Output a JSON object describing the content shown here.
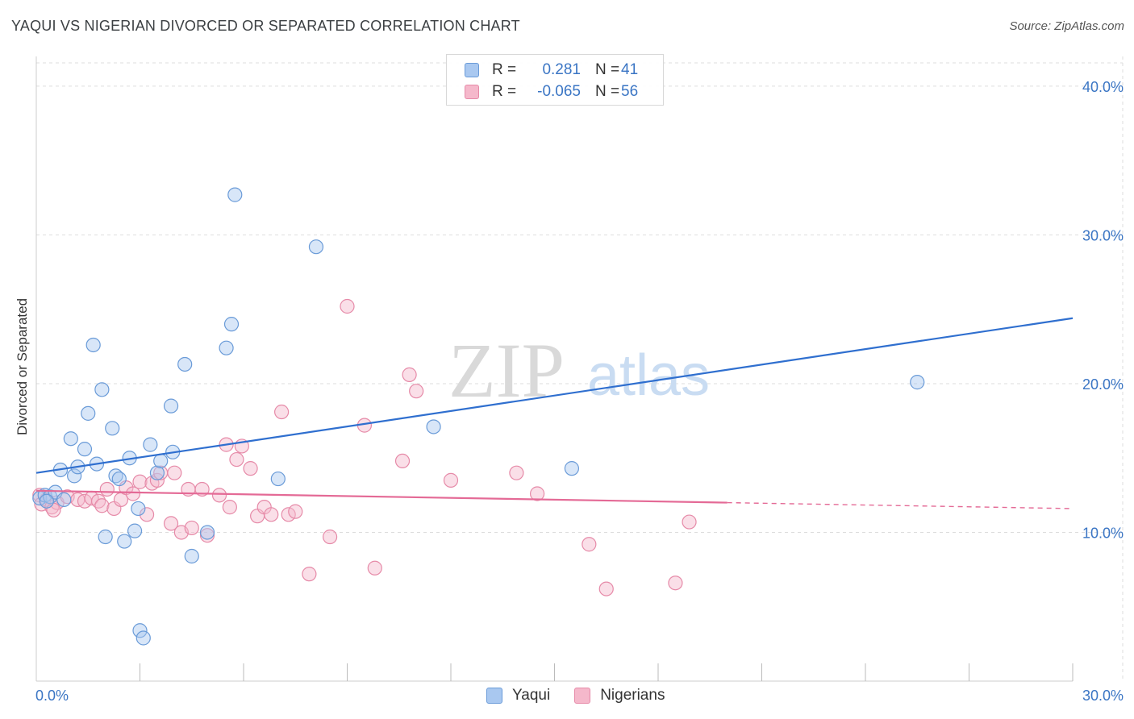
{
  "header": {
    "title": "YAQUI VS NIGERIAN DIVORCED OR SEPARATED CORRELATION CHART",
    "source": "Source: ZipAtlas.com"
  },
  "watermark": {
    "zip": "ZIP",
    "atlas": "atlas"
  },
  "legend_stats": [
    {
      "r_label": "R =",
      "r_value": "0.281",
      "n_label": "N =",
      "n_value": "41"
    },
    {
      "r_label": "R =",
      "r_value": "-0.065",
      "n_label": "N =",
      "n_value": "56"
    }
  ],
  "colors": {
    "yaqui_fill": "#a9c8f0",
    "yaqui_stroke": "#6a9bd8",
    "yaqui_line": "#2f6fcf",
    "nigerian_fill": "#f5b8cb",
    "nigerian_stroke": "#e68aa8",
    "nigerian_line": "#e46a96",
    "value_text": "#3a75c4",
    "grid": "#dddddd"
  },
  "chart_data": {
    "type": "scatter",
    "title": "YAQUI VS NIGERIAN DIVORCED OR SEPARATED CORRELATION CHART",
    "xlabel": "",
    "ylabel": "Divorced or Separated",
    "xlim": [
      0,
      30
    ],
    "ylim": [
      0,
      42
    ],
    "x_tick_labels": [
      "0.0%",
      "30.0%"
    ],
    "y_ticks": [
      10,
      20,
      30,
      40
    ],
    "y_tick_labels": [
      "10.0%",
      "20.0%",
      "30.0%",
      "40.0%"
    ],
    "legend": [
      "Yaqui",
      "Nigerians"
    ],
    "series": [
      {
        "name": "Yaqui",
        "r": 0.281,
        "n": 41,
        "trend": {
          "x": [
            0,
            30
          ],
          "y": [
            14.0,
            24.4
          ]
        },
        "points": [
          [
            0.1,
            12.3
          ],
          [
            0.25,
            12.5
          ],
          [
            0.4,
            12.4
          ],
          [
            0.55,
            12.7
          ],
          [
            0.8,
            12.2
          ],
          [
            0.7,
            14.2
          ],
          [
            1.1,
            13.8
          ],
          [
            1.2,
            14.4
          ],
          [
            1.0,
            16.3
          ],
          [
            1.4,
            15.6
          ],
          [
            1.5,
            18.0
          ],
          [
            1.65,
            22.6
          ],
          [
            1.75,
            14.6
          ],
          [
            1.9,
            19.6
          ],
          [
            2.0,
            9.7
          ],
          [
            2.2,
            17.0
          ],
          [
            2.3,
            13.8
          ],
          [
            2.4,
            13.6
          ],
          [
            2.55,
            9.4
          ],
          [
            2.7,
            15.0
          ],
          [
            2.85,
            10.1
          ],
          [
            2.95,
            11.6
          ],
          [
            3.0,
            3.4
          ],
          [
            3.1,
            2.9
          ],
          [
            3.3,
            15.9
          ],
          [
            3.5,
            14.0
          ],
          [
            3.6,
            14.8
          ],
          [
            3.9,
            18.5
          ],
          [
            3.95,
            15.4
          ],
          [
            4.3,
            21.3
          ],
          [
            4.5,
            8.4
          ],
          [
            4.95,
            10.0
          ],
          [
            5.5,
            22.4
          ],
          [
            5.65,
            24.0
          ],
          [
            5.75,
            32.7
          ],
          [
            7.0,
            13.6
          ],
          [
            8.1,
            29.2
          ],
          [
            11.5,
            17.1
          ],
          [
            15.5,
            14.3
          ],
          [
            25.5,
            20.1
          ],
          [
            0.3,
            12.1
          ]
        ]
      },
      {
        "name": "Nigerians",
        "r": -0.065,
        "n": 56,
        "trend": {
          "x": [
            0,
            20
          ],
          "y": [
            12.8,
            12.0
          ],
          "dashed_to": [
            30,
            11.6
          ]
        },
        "points": [
          [
            0.1,
            12.5
          ],
          [
            0.15,
            11.9
          ],
          [
            0.3,
            12.2
          ],
          [
            0.45,
            11.7
          ],
          [
            0.6,
            12.0
          ],
          [
            0.9,
            12.4
          ],
          [
            1.2,
            12.2
          ],
          [
            1.4,
            12.1
          ],
          [
            1.6,
            12.3
          ],
          [
            1.8,
            12.1
          ],
          [
            1.9,
            11.8
          ],
          [
            2.05,
            12.9
          ],
          [
            2.25,
            11.6
          ],
          [
            2.45,
            12.2
          ],
          [
            2.6,
            13.0
          ],
          [
            2.8,
            12.6
          ],
          [
            3.0,
            13.4
          ],
          [
            3.2,
            11.2
          ],
          [
            3.35,
            13.3
          ],
          [
            3.5,
            13.5
          ],
          [
            3.6,
            14.0
          ],
          [
            3.9,
            10.6
          ],
          [
            4.0,
            14.0
          ],
          [
            4.2,
            10.0
          ],
          [
            4.4,
            12.9
          ],
          [
            4.5,
            10.3
          ],
          [
            4.8,
            12.9
          ],
          [
            4.95,
            9.8
          ],
          [
            5.3,
            12.5
          ],
          [
            5.5,
            15.9
          ],
          [
            5.6,
            11.7
          ],
          [
            5.8,
            14.9
          ],
          [
            5.95,
            15.8
          ],
          [
            6.2,
            14.3
          ],
          [
            6.4,
            11.1
          ],
          [
            6.6,
            11.7
          ],
          [
            6.8,
            11.2
          ],
          [
            7.1,
            18.1
          ],
          [
            7.3,
            11.2
          ],
          [
            7.5,
            11.4
          ],
          [
            7.9,
            7.2
          ],
          [
            8.5,
            9.7
          ],
          [
            9.0,
            25.2
          ],
          [
            9.5,
            17.2
          ],
          [
            9.8,
            7.6
          ],
          [
            10.6,
            14.8
          ],
          [
            10.8,
            20.6
          ],
          [
            11.0,
            19.5
          ],
          [
            12.0,
            13.5
          ],
          [
            13.9,
            14.0
          ],
          [
            14.5,
            12.6
          ],
          [
            16.0,
            9.2
          ],
          [
            16.5,
            6.2
          ],
          [
            18.5,
            6.6
          ],
          [
            18.9,
            10.7
          ],
          [
            0.5,
            11.5
          ]
        ]
      }
    ]
  }
}
